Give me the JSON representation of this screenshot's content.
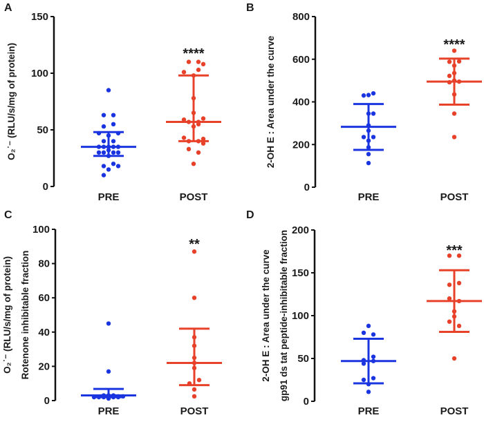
{
  "chart_data": [
    {
      "type": "scatter",
      "panel_label": "A",
      "ylabel_lines": [
        "O₂˙⁻ (RLU/s/mg of protein)"
      ],
      "ylim": [
        0,
        150
      ],
      "yticks": [
        0,
        50,
        100,
        150
      ],
      "categories": [
        "PRE",
        "POST"
      ],
      "significance": "****",
      "series": [
        {
          "name": "PRE",
          "color": "#1a35e0",
          "median": 35,
          "lower": 27,
          "upper": 48,
          "points": [
            [
              0,
              85
            ],
            [
              -1,
              63
            ],
            [
              1,
              63
            ],
            [
              -1,
              53
            ],
            [
              1,
              55
            ],
            [
              -2,
              47
            ],
            [
              2,
              47
            ],
            [
              0,
              45
            ],
            [
              -1,
              40
            ],
            [
              1,
              40
            ],
            [
              -2,
              35
            ],
            [
              -1,
              35
            ],
            [
              0,
              35
            ],
            [
              1,
              35
            ],
            [
              2,
              35
            ],
            [
              -2,
              30
            ],
            [
              -1,
              30
            ],
            [
              0,
              32
            ],
            [
              1,
              30
            ],
            [
              2,
              30
            ],
            [
              0,
              27
            ],
            [
              -1,
              18
            ],
            [
              1,
              20
            ],
            [
              2,
              18
            ],
            [
              0,
              15
            ],
            [
              -1,
              10
            ]
          ]
        },
        {
          "name": "POST",
          "color": "#e8412a",
          "median": 57,
          "lower": 40,
          "upper": 98,
          "points": [
            [
              -1,
              110
            ],
            [
              1,
              110
            ],
            [
              2,
              108
            ],
            [
              -2,
              101
            ],
            [
              1,
              103
            ],
            [
              0,
              98
            ],
            [
              0,
              78
            ],
            [
              0,
              65
            ],
            [
              -2,
              59
            ],
            [
              2,
              60
            ],
            [
              -1,
              57
            ],
            [
              1,
              57
            ],
            [
              0,
              53
            ],
            [
              1,
              55
            ],
            [
              -2,
              43
            ],
            [
              2,
              42
            ],
            [
              -1,
              40
            ],
            [
              1,
              40
            ],
            [
              2,
              38
            ],
            [
              -1,
              33
            ],
            [
              1,
              30
            ],
            [
              0,
              20
            ]
          ]
        }
      ]
    },
    {
      "type": "scatter",
      "panel_label": "B",
      "ylabel_lines": [
        "2-OH E : Area under the curve"
      ],
      "ylim": [
        0,
        800
      ],
      "yticks": [
        0,
        200,
        400,
        600,
        800
      ],
      "categories": [
        "PRE",
        "POST"
      ],
      "significance": "****",
      "series": [
        {
          "name": "PRE",
          "color": "#1a35e0",
          "median": 283,
          "lower": 175,
          "upper": 390,
          "points": [
            [
              -1,
              430
            ],
            [
              0,
              432
            ],
            [
              1,
              440
            ],
            [
              0,
              345
            ],
            [
              1,
              345
            ],
            [
              0,
              290
            ],
            [
              0,
              265
            ],
            [
              -1,
              235
            ],
            [
              1,
              235
            ],
            [
              0,
              218
            ],
            [
              0,
              187
            ],
            [
              0,
              155
            ],
            [
              0,
              113
            ]
          ]
        },
        {
          "name": "POST",
          "color": "#e8412a",
          "median": 495,
          "lower": 387,
          "upper": 603,
          "points": [
            [
              0,
              640
            ],
            [
              -1,
              588
            ],
            [
              1,
              590
            ],
            [
              0,
              570
            ],
            [
              0,
              535
            ],
            [
              -1,
              522
            ],
            [
              0,
              500
            ],
            [
              -1,
              492
            ],
            [
              1,
              495
            ],
            [
              0,
              435
            ],
            [
              0,
              345
            ],
            [
              0,
              235
            ]
          ]
        }
      ]
    },
    {
      "type": "scatter",
      "panel_label": "C",
      "ylabel_lines": [
        "O₂˙⁻ (RLU/s/mg of protein)",
        "Rotenone inhibitable fraction"
      ],
      "ylim": [
        0,
        100
      ],
      "yticks": [
        0,
        20,
        40,
        60,
        80,
        100
      ],
      "categories": [
        "PRE",
        "POST"
      ],
      "significance": "**",
      "series": [
        {
          "name": "PRE",
          "color": "#1a35e0",
          "median": 3,
          "lower": 2,
          "upper": 6.8,
          "points": [
            [
              0,
              45
            ],
            [
              0,
              17
            ],
            [
              -2,
              2
            ],
            [
              -1,
              3
            ],
            [
              0,
              3
            ],
            [
              1,
              3
            ],
            [
              2,
              2.5
            ],
            [
              -1,
              2
            ],
            [
              0,
              1.2
            ],
            [
              1,
              2
            ],
            [
              2,
              2
            ],
            [
              3,
              2.5
            ],
            [
              -3,
              2
            ]
          ]
        },
        {
          "name": "POST",
          "color": "#e8412a",
          "median": 22,
          "lower": 9,
          "upper": 42,
          "points": [
            [
              0,
              87
            ],
            [
              0,
              60
            ],
            [
              0,
              37
            ],
            [
              0,
              32
            ],
            [
              0,
              25
            ],
            [
              0,
              22
            ],
            [
              0,
              19
            ],
            [
              1,
              12
            ],
            [
              -1,
              10
            ],
            [
              0,
              6.5
            ],
            [
              0,
              2.5
            ]
          ]
        }
      ]
    },
    {
      "type": "scatter",
      "panel_label": "D",
      "ylabel_lines": [
        "2-OH E : Area under the curve",
        "gp91 ds tat peptide-inhibitable fraction"
      ],
      "ylim": [
        0,
        200
      ],
      "yticks": [
        0,
        50,
        100,
        150,
        200
      ],
      "categories": [
        "PRE",
        "POST"
      ],
      "significance": "***",
      "series": [
        {
          "name": "PRE",
          "color": "#1a35e0",
          "median": 47,
          "lower": 21,
          "upper": 73,
          "points": [
            [
              0,
              88
            ],
            [
              -1,
              80
            ],
            [
              1,
              78
            ],
            [
              1,
              52
            ],
            [
              -1,
              48
            ],
            [
              1,
              47
            ],
            [
              -1,
              44
            ],
            [
              -1,
              25
            ],
            [
              1,
              27
            ],
            [
              0,
              20
            ],
            [
              0,
              11
            ]
          ]
        },
        {
          "name": "POST",
          "color": "#e8412a",
          "median": 117,
          "lower": 81,
          "upper": 153,
          "points": [
            [
              -1,
              170
            ],
            [
              1,
              170
            ],
            [
              -1,
              136
            ],
            [
              1,
              138
            ],
            [
              -1,
              120
            ],
            [
              1,
              117
            ],
            [
              0,
              105
            ],
            [
              0,
              99
            ],
            [
              -1,
              93
            ],
            [
              1,
              88
            ],
            [
              0,
              50
            ]
          ]
        }
      ]
    }
  ]
}
